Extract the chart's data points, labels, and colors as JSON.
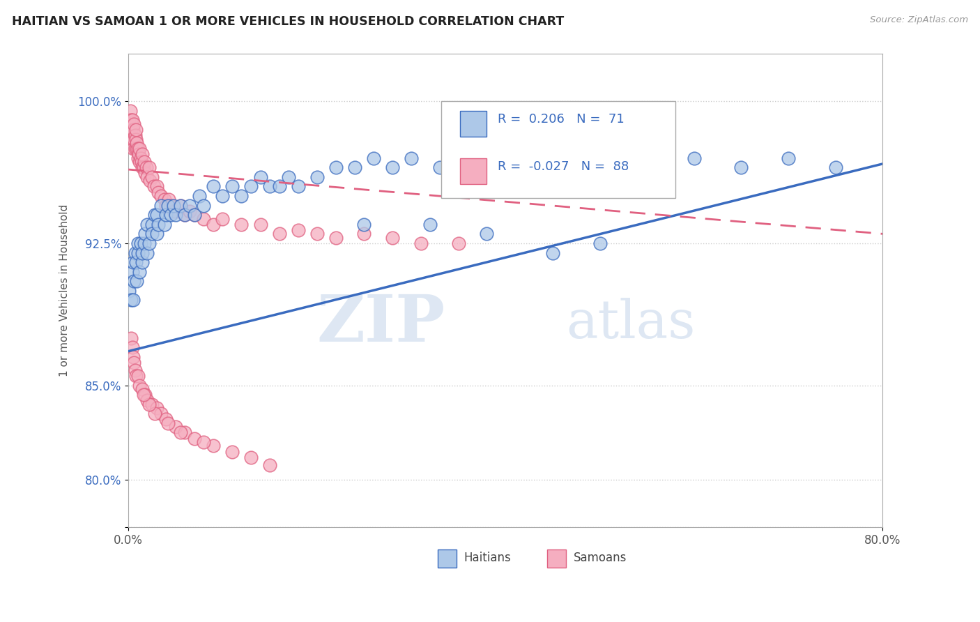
{
  "title": "HAITIAN VS SAMOAN 1 OR MORE VEHICLES IN HOUSEHOLD CORRELATION CHART",
  "source": "Source: ZipAtlas.com",
  "ylabel": "1 or more Vehicles in Household",
  "legend_blue_r": "0.206",
  "legend_blue_n": "71",
  "legend_pink_r": "-0.027",
  "legend_pink_n": "88",
  "legend_label_blue": "Haitians",
  "legend_label_pink": "Samoans",
  "blue_color": "#adc8e8",
  "pink_color": "#f5aec0",
  "blue_line_color": "#3a6bbf",
  "pink_line_color": "#e06080",
  "watermark_zip": "ZIP",
  "watermark_atlas": "atlas",
  "xmin": 0.0,
  "xmax": 0.8,
  "ymin": 0.775,
  "ymax": 1.025,
  "ytick_vals": [
    0.775,
    0.8,
    0.85,
    0.925,
    1.0
  ],
  "ytick_labels": [
    "",
    "80.0%",
    "85.0%",
    "92.5%",
    "100.0%"
  ],
  "blue_line_x0": 0.0,
  "blue_line_y0": 0.868,
  "blue_line_x1": 0.8,
  "blue_line_y1": 0.967,
  "pink_line_x0": 0.0,
  "pink_line_y0": 0.964,
  "pink_line_x1": 0.8,
  "pink_line_y1": 0.93,
  "blue_scatter_x": [
    0.001,
    0.003,
    0.004,
    0.005,
    0.005,
    0.006,
    0.007,
    0.008,
    0.009,
    0.01,
    0.01,
    0.012,
    0.013,
    0.015,
    0.015,
    0.017,
    0.018,
    0.02,
    0.02,
    0.022,
    0.025,
    0.025,
    0.028,
    0.03,
    0.03,
    0.032,
    0.035,
    0.038,
    0.04,
    0.042,
    0.045,
    0.048,
    0.05,
    0.055,
    0.06,
    0.065,
    0.07,
    0.075,
    0.08,
    0.09,
    0.1,
    0.11,
    0.12,
    0.13,
    0.14,
    0.15,
    0.17,
    0.18,
    0.2,
    0.22,
    0.24,
    0.26,
    0.28,
    0.3,
    0.33,
    0.36,
    0.4,
    0.44,
    0.48,
    0.52,
    0.56,
    0.6,
    0.65,
    0.7,
    0.75,
    0.5,
    0.45,
    0.38,
    0.32,
    0.25,
    0.16
  ],
  "blue_scatter_y": [
    0.9,
    0.895,
    0.91,
    0.895,
    0.915,
    0.905,
    0.92,
    0.915,
    0.905,
    0.92,
    0.925,
    0.91,
    0.925,
    0.915,
    0.92,
    0.925,
    0.93,
    0.92,
    0.935,
    0.925,
    0.935,
    0.93,
    0.94,
    0.93,
    0.94,
    0.935,
    0.945,
    0.935,
    0.94,
    0.945,
    0.94,
    0.945,
    0.94,
    0.945,
    0.94,
    0.945,
    0.94,
    0.95,
    0.945,
    0.955,
    0.95,
    0.955,
    0.95,
    0.955,
    0.96,
    0.955,
    0.96,
    0.955,
    0.96,
    0.965,
    0.965,
    0.97,
    0.965,
    0.97,
    0.965,
    0.97,
    0.965,
    0.97,
    0.965,
    0.965,
    0.965,
    0.97,
    0.965,
    0.97,
    0.965,
    0.925,
    0.92,
    0.93,
    0.935,
    0.935,
    0.955
  ],
  "pink_scatter_x": [
    0.001,
    0.002,
    0.003,
    0.003,
    0.004,
    0.004,
    0.005,
    0.005,
    0.006,
    0.006,
    0.007,
    0.007,
    0.008,
    0.008,
    0.009,
    0.009,
    0.01,
    0.01,
    0.011,
    0.012,
    0.012,
    0.013,
    0.014,
    0.015,
    0.015,
    0.016,
    0.017,
    0.018,
    0.019,
    0.02,
    0.022,
    0.023,
    0.025,
    0.027,
    0.03,
    0.032,
    0.035,
    0.038,
    0.04,
    0.043,
    0.045,
    0.048,
    0.05,
    0.055,
    0.06,
    0.065,
    0.07,
    0.08,
    0.09,
    0.1,
    0.12,
    0.14,
    0.16,
    0.18,
    0.2,
    0.22,
    0.25,
    0.28,
    0.31,
    0.35,
    0.003,
    0.004,
    0.005,
    0.006,
    0.007,
    0.008,
    0.01,
    0.012,
    0.015,
    0.018,
    0.02,
    0.025,
    0.03,
    0.035,
    0.04,
    0.05,
    0.06,
    0.07,
    0.09,
    0.11,
    0.13,
    0.15,
    0.08,
    0.055,
    0.042,
    0.028,
    0.022,
    0.016
  ],
  "pink_scatter_y": [
    0.99,
    0.995,
    0.985,
    0.99,
    0.98,
    0.99,
    0.985,
    0.975,
    0.98,
    0.988,
    0.982,
    0.975,
    0.98,
    0.985,
    0.975,
    0.978,
    0.97,
    0.975,
    0.972,
    0.968,
    0.975,
    0.97,
    0.968,
    0.965,
    0.972,
    0.965,
    0.968,
    0.962,
    0.965,
    0.96,
    0.965,
    0.958,
    0.96,
    0.955,
    0.955,
    0.952,
    0.95,
    0.948,
    0.945,
    0.948,
    0.945,
    0.942,
    0.942,
    0.945,
    0.94,
    0.942,
    0.94,
    0.938,
    0.935,
    0.938,
    0.935,
    0.935,
    0.93,
    0.932,
    0.93,
    0.928,
    0.93,
    0.928,
    0.925,
    0.925,
    0.875,
    0.87,
    0.865,
    0.862,
    0.858,
    0.855,
    0.855,
    0.85,
    0.848,
    0.845,
    0.842,
    0.84,
    0.838,
    0.835,
    0.832,
    0.828,
    0.825,
    0.822,
    0.818,
    0.815,
    0.812,
    0.808,
    0.82,
    0.825,
    0.83,
    0.835,
    0.84,
    0.845
  ]
}
